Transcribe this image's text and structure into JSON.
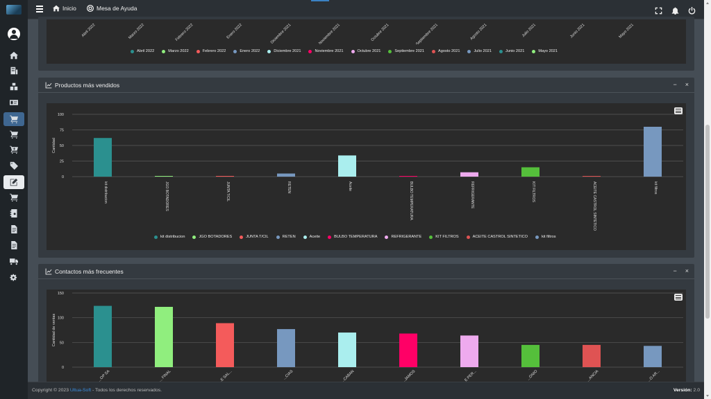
{
  "topbar": {
    "home_label": "Inicio",
    "help_label": "Mesa de Ayuda"
  },
  "sidebar": {
    "items": [
      {
        "icon": "home-icon"
      },
      {
        "icon": "building-icon"
      },
      {
        "icon": "boxes-icon"
      },
      {
        "icon": "id-card-icon"
      },
      {
        "icon": "cart-icon"
      },
      {
        "icon": "cart-icon"
      },
      {
        "icon": "cart-plus-icon"
      },
      {
        "icon": "tag-icon"
      },
      {
        "icon": "edit-icon"
      },
      {
        "icon": "cart-icon"
      },
      {
        "icon": "contact-book-icon"
      },
      {
        "icon": "invoice-icon"
      },
      {
        "icon": "invoice-icon"
      },
      {
        "icon": "truck-icon"
      },
      {
        "icon": "cogs-icon"
      }
    ]
  },
  "top_card": {
    "x_labels": [
      "Abril 2022",
      "Marzo 2022",
      "Febrero 2022",
      "Enero 2022",
      "Diciembre 2021",
      "Noviembre 2021",
      "Octubre 2021",
      "Septiembre 2021",
      "Agosto 2021",
      "Julio 2021",
      "Junio 2021",
      "Mayo 2021"
    ],
    "legend": [
      {
        "name": "Abril 2022",
        "color": "#2b908f"
      },
      {
        "name": "Marzo 2022",
        "color": "#90ee7e"
      },
      {
        "name": "Febrero 2022",
        "color": "#f45b5b"
      },
      {
        "name": "Enero 2022",
        "color": "#7798bf"
      },
      {
        "name": "Diciembre 2021",
        "color": "#aaeeee"
      },
      {
        "name": "Noviembre 2021",
        "color": "#ff0066"
      },
      {
        "name": "Octubre 2021",
        "color": "#eeaaee"
      },
      {
        "name": "Septiembre 2021",
        "color": "#55bf3b"
      },
      {
        "name": "Agosto 2021",
        "color": "#df5353"
      },
      {
        "name": "Julio 2021",
        "color": "#7798bf"
      },
      {
        "name": "Junio 2021",
        "color": "#2b908f"
      },
      {
        "name": "Mayo 2021",
        "color": "#90ee7e"
      }
    ]
  },
  "products_card": {
    "title": "Productos más vendidos",
    "minimize": "−",
    "close": "×"
  },
  "contacts_card": {
    "title": "Contactos más frecuentes",
    "minimize": "−",
    "close": "×"
  },
  "chart_data": [
    {
      "type": "bar",
      "title": "",
      "ylabel": "Cantidad",
      "xlabel": "",
      "ylim": [
        0,
        100
      ],
      "yticks": [
        0,
        25,
        50,
        75,
        100
      ],
      "grid": true,
      "legend_position": "bottom",
      "categories": [
        "kit distribucion",
        "JGO BOTADORES",
        "JUNTA T/CIL",
        "RETEN",
        "Aceite",
        "BULBO TEMPERATURA",
        "REFRIGERANTE",
        "KIT FILTROS",
        "ACEITE CASTROL SINTETICO",
        "kit filtros"
      ],
      "values": [
        62,
        1,
        1,
        5,
        34,
        1,
        7,
        15,
        1,
        80
      ],
      "colors": [
        "#2b908f",
        "#90ee7e",
        "#f45b5b",
        "#7798bf",
        "#aaeeee",
        "#ff0066",
        "#eeaaee",
        "#55bf3b",
        "#df5353",
        "#7798bf"
      ]
    },
    {
      "type": "bar",
      "title": "",
      "ylabel": "Cantidad de ventas",
      "xlabel": "",
      "ylim": [
        0,
        150
      ],
      "yticks": [
        0,
        50,
        100,
        150
      ],
      "grid": true,
      "categories": [
        "...OP SA",
        "... FINAL",
        "...E SAL...",
        "...CIAS",
        "...CABAN",
        "...JAMOS",
        "...E PER...",
        "...ONIO",
        "...ANCIA",
        "...O AR..."
      ],
      "values": [
        124,
        122,
        89,
        77,
        70,
        68,
        64,
        45,
        45,
        43
      ],
      "colors": [
        "#2b908f",
        "#90ee7e",
        "#f45b5b",
        "#7798bf",
        "#aaeeee",
        "#ff0066",
        "#eeaaee",
        "#55bf3b",
        "#df5353",
        "#7798bf"
      ]
    }
  ],
  "footer": {
    "copyright_prefix": "Copyright © 2023",
    "brand": "Ultua-Soft",
    "copyright_suffix": "- Todos los derechos reservados.",
    "version_label": "Versión:",
    "version_value": "2.0"
  }
}
